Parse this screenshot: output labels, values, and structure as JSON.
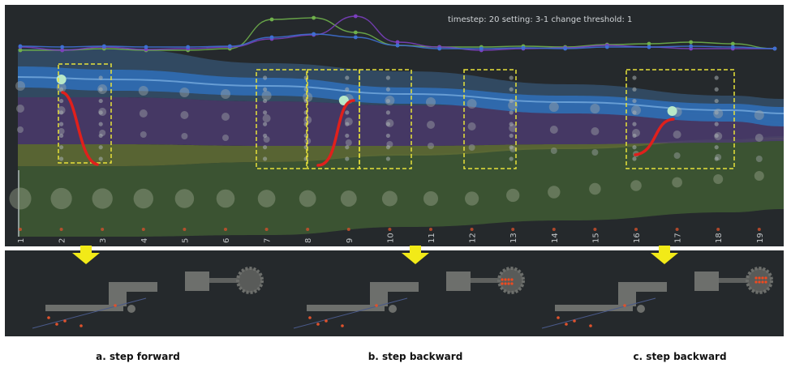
{
  "info": {
    "timestep": "timestep: 20",
    "setting": "setting: 3-1",
    "threshold": "change threshold: 1"
  },
  "captions": [
    "a. step forward",
    "b. step backward",
    "c. step backward"
  ],
  "colors": {
    "background": "#25292c",
    "highlight": "#e8e23a",
    "jump": "#e0201c",
    "arrow": "#f2ea18",
    "stream_top": "#2f6bb0",
    "stream_purple": "#4e3c73",
    "stream_olive": "#5e6a34",
    "stream_green": "#3f5a34",
    "line_green": "#6fb04b",
    "line_purple": "#7b3fbe",
    "line_blue": "#3e6fd1"
  },
  "chart_data": {
    "type": "area",
    "title": "",
    "xlabel": "",
    "ylabel": "",
    "x": [
      1,
      2,
      3,
      4,
      5,
      6,
      7,
      8,
      9,
      10,
      11,
      12,
      13,
      14,
      15,
      16,
      17,
      18,
      19
    ],
    "grid": false,
    "highlight_boxes": [
      [
        2,
        3
      ],
      [
        7,
        8
      ],
      [
        8,
        9
      ],
      [
        9,
        10
      ],
      [
        12,
        13
      ],
      [
        16,
        18
      ]
    ],
    "jumps": [
      {
        "from": 2,
        "to": 3,
        "direction": "forward"
      },
      {
        "from": 8,
        "to": 9,
        "direction": "backward"
      },
      {
        "from": 16,
        "to": 17,
        "direction": "backward"
      }
    ]
  }
}
